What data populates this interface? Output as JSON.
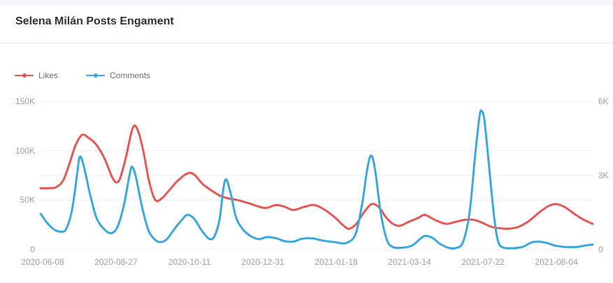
{
  "header": {
    "title": "Selena Milán Posts Engament"
  },
  "legend": [
    {
      "label": "Likes",
      "color": "#e85654"
    },
    {
      "label": "Comments",
      "color": "#3aa8e0"
    }
  ],
  "colors": {
    "likes": "#e85654",
    "comments": "#3aa8e0",
    "title_text": "#2f3338",
    "legend_text": "#6b6f73",
    "axis_label": "#9aa0a6",
    "grid_line": "#ededed",
    "divider": "#e8e8e8"
  },
  "chart_data": {
    "type": "line",
    "title": "Selena Milán Posts Engament",
    "grid": true,
    "legend_position": "top-left",
    "x_tick_labels": [
      "2020-06-08",
      "2020-08-27",
      "2020-10-11",
      "2020-12-31",
      "2021-01-18",
      "2021-03-14",
      "2021-07-22",
      "2021-08-04"
    ],
    "left_axis": {
      "ticks": [
        "0",
        "50K",
        "100K",
        "150K"
      ],
      "min": 0,
      "max": 150000
    },
    "right_axis": {
      "ticks": [
        "0",
        "3K",
        "6K"
      ],
      "min": 0,
      "max": 6000
    },
    "series": [
      {
        "name": "Likes",
        "yaxis": "left",
        "color": "#e85654",
        "points": [
          [
            0.0,
            62000
          ],
          [
            0.015,
            62000
          ],
          [
            0.028,
            63000
          ],
          [
            0.041,
            70000
          ],
          [
            0.053,
            88000
          ],
          [
            0.063,
            105000
          ],
          [
            0.075,
            116000
          ],
          [
            0.087,
            113000
          ],
          [
            0.101,
            106000
          ],
          [
            0.116,
            92000
          ],
          [
            0.129,
            74000
          ],
          [
            0.137,
            68000
          ],
          [
            0.144,
            72000
          ],
          [
            0.154,
            92000
          ],
          [
            0.167,
            123000
          ],
          [
            0.176,
            121000
          ],
          [
            0.186,
            100000
          ],
          [
            0.197,
            68000
          ],
          [
            0.208,
            50000
          ],
          [
            0.22,
            52000
          ],
          [
            0.233,
            60000
          ],
          [
            0.249,
            70000
          ],
          [
            0.266,
            77000
          ],
          [
            0.278,
            76000
          ],
          [
            0.294,
            66000
          ],
          [
            0.309,
            60000
          ],
          [
            0.323,
            55000
          ],
          [
            0.338,
            52000
          ],
          [
            0.357,
            50000
          ],
          [
            0.376,
            47000
          ],
          [
            0.392,
            44000
          ],
          [
            0.408,
            42000
          ],
          [
            0.427,
            45000
          ],
          [
            0.443,
            43000
          ],
          [
            0.458,
            40000
          ],
          [
            0.477,
            43000
          ],
          [
            0.496,
            45000
          ],
          [
            0.515,
            40000
          ],
          [
            0.534,
            32000
          ],
          [
            0.549,
            24000
          ],
          [
            0.559,
            21000
          ],
          [
            0.572,
            26000
          ],
          [
            0.585,
            37000
          ],
          [
            0.6,
            46000
          ],
          [
            0.614,
            42000
          ],
          [
            0.625,
            33000
          ],
          [
            0.638,
            26000
          ],
          [
            0.651,
            24000
          ],
          [
            0.667,
            28000
          ],
          [
            0.684,
            32000
          ],
          [
            0.696,
            35000
          ],
          [
            0.714,
            30000
          ],
          [
            0.734,
            26000
          ],
          [
            0.752,
            28000
          ],
          [
            0.768,
            30000
          ],
          [
            0.785,
            30000
          ],
          [
            0.8,
            27000
          ],
          [
            0.816,
            23000
          ],
          [
            0.832,
            21500
          ],
          [
            0.848,
            21000
          ],
          [
            0.866,
            23000
          ],
          [
            0.885,
            29000
          ],
          [
            0.904,
            38000
          ],
          [
            0.92,
            44000
          ],
          [
            0.933,
            46000
          ],
          [
            0.949,
            43000
          ],
          [
            0.967,
            36000
          ],
          [
            0.984,
            30000
          ],
          [
            1.0,
            26000
          ]
        ]
      },
      {
        "name": "Comments",
        "yaxis": "right",
        "color": "#3aa8e0",
        "points": [
          [
            0.0,
            1450
          ],
          [
            0.013,
            1050
          ],
          [
            0.025,
            800
          ],
          [
            0.038,
            720
          ],
          [
            0.047,
            850
          ],
          [
            0.057,
            1600
          ],
          [
            0.066,
            3000
          ],
          [
            0.071,
            3750
          ],
          [
            0.078,
            3400
          ],
          [
            0.089,
            2300
          ],
          [
            0.101,
            1300
          ],
          [
            0.114,
            850
          ],
          [
            0.127,
            660
          ],
          [
            0.139,
            900
          ],
          [
            0.151,
            1800
          ],
          [
            0.161,
            3000
          ],
          [
            0.166,
            3350
          ],
          [
            0.173,
            2900
          ],
          [
            0.184,
            1700
          ],
          [
            0.195,
            800
          ],
          [
            0.205,
            450
          ],
          [
            0.215,
            300
          ],
          [
            0.228,
            400
          ],
          [
            0.243,
            850
          ],
          [
            0.256,
            1200
          ],
          [
            0.266,
            1400
          ],
          [
            0.278,
            1250
          ],
          [
            0.291,
            800
          ],
          [
            0.304,
            450
          ],
          [
            0.314,
            500
          ],
          [
            0.324,
            1200
          ],
          [
            0.334,
            2800
          ],
          [
            0.344,
            2300
          ],
          [
            0.354,
            1300
          ],
          [
            0.367,
            800
          ],
          [
            0.38,
            550
          ],
          [
            0.395,
            420
          ],
          [
            0.41,
            500
          ],
          [
            0.427,
            450
          ],
          [
            0.443,
            330
          ],
          [
            0.458,
            320
          ],
          [
            0.473,
            430
          ],
          [
            0.492,
            450
          ],
          [
            0.511,
            360
          ],
          [
            0.532,
            300
          ],
          [
            0.553,
            260
          ],
          [
            0.57,
            600
          ],
          [
            0.582,
            1800
          ],
          [
            0.592,
            3300
          ],
          [
            0.599,
            3800
          ],
          [
            0.606,
            3200
          ],
          [
            0.616,
            1500
          ],
          [
            0.627,
            400
          ],
          [
            0.638,
            100
          ],
          [
            0.654,
            70
          ],
          [
            0.673,
            160
          ],
          [
            0.686,
            400
          ],
          [
            0.696,
            550
          ],
          [
            0.709,
            480
          ],
          [
            0.722,
            250
          ],
          [
            0.737,
            80
          ],
          [
            0.752,
            60
          ],
          [
            0.765,
            300
          ],
          [
            0.777,
            1500
          ],
          [
            0.787,
            3800
          ],
          [
            0.795,
            5400
          ],
          [
            0.799,
            5600
          ],
          [
            0.804,
            5200
          ],
          [
            0.813,
            3200
          ],
          [
            0.822,
            1200
          ],
          [
            0.829,
            300
          ],
          [
            0.838,
            80
          ],
          [
            0.854,
            50
          ],
          [
            0.872,
            100
          ],
          [
            0.889,
            280
          ],
          [
            0.901,
            320
          ],
          [
            0.916,
            270
          ],
          [
            0.933,
            150
          ],
          [
            0.952,
            100
          ],
          [
            0.97,
            100
          ],
          [
            0.987,
            160
          ],
          [
            1.0,
            200
          ]
        ]
      }
    ]
  }
}
